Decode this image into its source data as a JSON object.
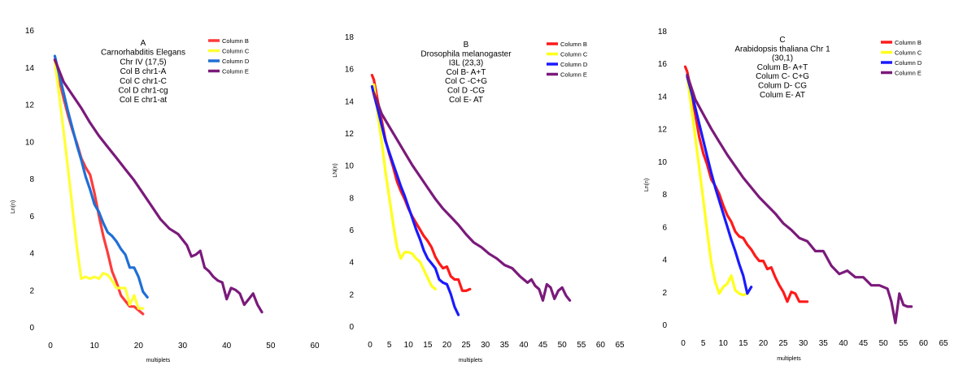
{
  "chart_data": [
    {
      "type": "line",
      "panel": "A",
      "annotation": [
        "A",
        "Carnorhabditis Elegans",
        "Chr IV (17,5)",
        "Col B chr1-A",
        "Col C chr1-C",
        "Col D chr1-cg",
        "Col E chr1-at"
      ],
      "xlabel": "multiplets",
      "ylabel": "Ln(n)",
      "xlim": [
        0,
        60
      ],
      "ylim": [
        0,
        16
      ],
      "xticks": [
        0,
        10,
        20,
        30,
        40,
        50,
        60
      ],
      "yticks": [
        0,
        2,
        4,
        6,
        8,
        10,
        12,
        14,
        16
      ],
      "legend_position": "top-right",
      "series": [
        {
          "name": "Column B",
          "color": "#ff3b3b",
          "x": [
            1,
            2,
            3,
            4,
            5,
            6,
            7,
            8,
            9,
            10,
            11,
            12,
            13,
            14,
            15,
            16,
            17,
            18,
            19,
            20,
            21
          ],
          "y": [
            14.4,
            13.3,
            12.3,
            11.4,
            10.6,
            9.9,
            9.1,
            8.6,
            8.2,
            7.2,
            6.0,
            4.9,
            4.0,
            3.0,
            2.4,
            1.7,
            1.4,
            1.1,
            1.1,
            0.9,
            0.7
          ]
        },
        {
          "name": "Column C",
          "color": "#ffff33",
          "x": [
            1,
            2,
            3,
            4,
            5,
            6,
            7,
            8,
            9,
            10,
            11,
            12,
            13,
            14,
            15,
            16,
            17,
            18,
            19,
            20,
            21
          ],
          "y": [
            14.3,
            12.5,
            10.5,
            8.5,
            6.4,
            4.3,
            2.6,
            2.7,
            2.6,
            2.7,
            2.6,
            2.9,
            2.8,
            2.5,
            2.1,
            2.1,
            2.1,
            1.2,
            1.7,
            1.0,
            1.0
          ]
        },
        {
          "name": "Column D",
          "color": "#1f6fd6",
          "x": [
            1,
            2,
            3,
            4,
            5,
            6,
            7,
            8,
            9,
            10,
            11,
            12,
            13,
            14,
            15,
            16,
            17,
            18,
            19,
            20,
            21,
            22
          ],
          "y": [
            14.6,
            13.6,
            12.6,
            11.6,
            10.7,
            9.8,
            9.0,
            8.1,
            7.4,
            6.6,
            6.2,
            5.6,
            5.1,
            4.9,
            4.6,
            4.2,
            3.9,
            3.2,
            3.2,
            2.7,
            1.9,
            1.6
          ]
        },
        {
          "name": "Column E",
          "color": "#7b1a7b",
          "x": [
            1,
            3,
            5,
            7,
            9,
            11,
            13,
            15,
            17,
            19,
            21,
            23,
            25,
            27,
            29,
            31,
            32,
            33,
            34,
            35,
            36,
            37,
            38,
            39,
            40,
            41,
            42,
            43,
            44,
            45,
            46,
            47,
            48
          ],
          "y": [
            14.4,
            13.2,
            12.5,
            11.8,
            11.0,
            10.3,
            9.7,
            9.1,
            8.5,
            7.9,
            7.2,
            6.5,
            5.8,
            5.3,
            5.0,
            4.4,
            3.8,
            3.9,
            4.1,
            3.2,
            3.0,
            2.7,
            2.5,
            2.4,
            1.5,
            2.1,
            2.0,
            1.8,
            1.2,
            1.5,
            1.8,
            1.2,
            0.8
          ]
        }
      ]
    },
    {
      "type": "line",
      "panel": "B",
      "annotation": [
        "B",
        "Drosophila melanogaster",
        "I3L (23,3)",
        "Col B- A+T",
        "Col C -C+G",
        "Col D -CG",
        "Col E- AT"
      ],
      "xlabel": "multiplets",
      "ylabel": "LN(n)",
      "xlim": [
        0,
        65
      ],
      "ylim": [
        0,
        18
      ],
      "xticks": [
        0,
        5,
        10,
        15,
        20,
        25,
        30,
        35,
        40,
        45,
        50,
        55,
        60,
        65
      ],
      "yticks": [
        0,
        2,
        4,
        6,
        8,
        10,
        12,
        14,
        16,
        18
      ],
      "legend_position": "top-right",
      "series": [
        {
          "name": "Column B",
          "color": "#ff1a1a",
          "x": [
            0.5,
            1,
            2,
            3,
            4,
            5,
            6,
            7,
            8,
            9,
            10,
            11,
            12,
            13,
            14,
            15,
            16,
            17,
            18,
            19,
            20,
            21,
            22,
            23,
            24,
            25,
            26
          ],
          "y": [
            15.6,
            15.3,
            14.0,
            12.8,
            11.6,
            10.7,
            9.9,
            9.0,
            8.4,
            7.9,
            7.3,
            6.8,
            6.4,
            6.0,
            5.6,
            5.3,
            4.9,
            4.3,
            3.9,
            3.6,
            3.7,
            3.1,
            2.9,
            2.9,
            2.2,
            2.2,
            2.3
          ]
        },
        {
          "name": "Column C",
          "color": "#ffff1a",
          "x": [
            1,
            2,
            3,
            4,
            5,
            6,
            7,
            8,
            9,
            10,
            11,
            12,
            13,
            14,
            15,
            16,
            17
          ],
          "y": [
            15.0,
            13.2,
            11.5,
            9.6,
            8.0,
            6.4,
            4.9,
            4.2,
            4.6,
            4.6,
            4.5,
            4.2,
            4.0,
            3.5,
            3.0,
            2.5,
            2.3
          ]
        },
        {
          "name": "Column D",
          "color": "#1a1aff",
          "x": [
            0.5,
            1,
            2,
            3,
            4,
            5,
            6,
            7,
            8,
            9,
            10,
            11,
            12,
            13,
            14,
            15,
            16,
            17,
            18,
            19,
            20,
            21,
            22,
            23
          ],
          "y": [
            14.9,
            14.4,
            13.5,
            12.5,
            11.5,
            10.8,
            10.1,
            9.4,
            8.7,
            8.1,
            7.4,
            6.7,
            6.0,
            5.4,
            4.7,
            4.2,
            3.9,
            3.6,
            2.9,
            2.7,
            2.6,
            2.0,
            1.2,
            0.7
          ]
        },
        {
          "name": "Column E",
          "color": "#7b1a7b",
          "x": [
            1,
            3,
            5,
            7,
            9,
            11,
            13,
            15,
            17,
            19,
            21,
            23,
            25,
            27,
            29,
            31,
            33,
            35,
            37,
            39,
            41,
            42,
            43,
            44,
            45,
            46,
            47,
            48,
            49,
            50,
            51,
            52
          ],
          "y": [
            14.5,
            13.2,
            12.4,
            11.6,
            10.8,
            10.0,
            9.3,
            8.6,
            7.9,
            7.3,
            6.8,
            6.3,
            5.7,
            5.2,
            4.9,
            4.5,
            4.2,
            3.8,
            3.6,
            3.1,
            2.7,
            2.9,
            2.5,
            2.3,
            1.6,
            2.6,
            2.4,
            1.7,
            2.2,
            2.4,
            1.9,
            1.6
          ]
        }
      ]
    },
    {
      "type": "line",
      "panel": "C",
      "annotation": [
        "C",
        "Arabidopsis thaliana Chr 1",
        "(30,1)",
        "Colum B- A+T",
        "Colum C- C+G",
        "Colum D- CG",
        "Colum E- AT"
      ],
      "xlabel": "multiplets",
      "ylabel": "Ln(n)",
      "xlim": [
        0,
        65
      ],
      "ylim": [
        0,
        18
      ],
      "xticks": [
        0,
        5,
        10,
        15,
        20,
        25,
        30,
        35,
        40,
        45,
        50,
        55,
        60,
        65
      ],
      "yticks": [
        0,
        2,
        4,
        6,
        8,
        10,
        12,
        14,
        16,
        18
      ],
      "legend_position": "top-right",
      "series": [
        {
          "name": "Column B",
          "color": "#ff1a1a",
          "x": [
            0.5,
            1,
            2,
            3,
            4,
            5,
            6,
            7,
            8,
            9,
            10,
            11,
            12,
            13,
            14,
            15,
            16,
            17,
            18,
            19,
            20,
            21,
            22,
            23,
            24,
            25,
            26,
            27,
            28,
            29,
            30,
            31
          ],
          "y": [
            15.8,
            15.5,
            14.3,
            12.9,
            11.5,
            10.5,
            9.8,
            8.9,
            8.5,
            8.0,
            7.3,
            6.7,
            6.3,
            5.7,
            5.4,
            5.3,
            4.9,
            4.6,
            4.2,
            3.9,
            3.9,
            3.4,
            3.5,
            2.9,
            2.4,
            2.0,
            1.4,
            2.0,
            1.9,
            1.4,
            1.4,
            1.4
          ]
        },
        {
          "name": "Column C",
          "color": "#ffff1a",
          "x": [
            1,
            2,
            3,
            4,
            5,
            6,
            7,
            8,
            9,
            10,
            11,
            12,
            13,
            14,
            15,
            16
          ],
          "y": [
            15.2,
            13.4,
            11.5,
            9.6,
            7.7,
            5.7,
            3.8,
            2.6,
            1.9,
            2.3,
            2.5,
            3.0,
            2.1,
            1.9,
            1.8,
            1.9
          ]
        },
        {
          "name": "Column D",
          "color": "#1a1aff",
          "x": [
            1,
            2,
            3,
            4,
            5,
            6,
            7,
            8,
            9,
            10,
            11,
            12,
            13,
            14,
            15,
            16,
            17
          ],
          "y": [
            15.2,
            14.3,
            13.3,
            12.3,
            11.3,
            10.3,
            9.3,
            8.4,
            7.6,
            6.8,
            6.0,
            5.2,
            4.5,
            3.7,
            3.0,
            1.9,
            2.3
          ]
        },
        {
          "name": "Column E",
          "color": "#7b1a7b",
          "x": [
            1,
            3,
            5,
            7,
            9,
            11,
            13,
            15,
            17,
            19,
            21,
            23,
            25,
            27,
            29,
            31,
            33,
            35,
            37,
            39,
            41,
            43,
            45,
            47,
            49,
            51,
            52,
            53,
            54,
            55,
            56,
            57
          ],
          "y": [
            15.3,
            13.8,
            12.9,
            12.0,
            11.2,
            10.4,
            9.7,
            9.0,
            8.4,
            7.8,
            7.3,
            6.8,
            6.2,
            5.8,
            5.3,
            5.1,
            4.5,
            4.5,
            3.6,
            3.1,
            3.3,
            2.9,
            2.9,
            2.4,
            2.4,
            2.2,
            1.4,
            0.1,
            1.9,
            1.2,
            1.1,
            1.1
          ]
        }
      ]
    }
  ]
}
